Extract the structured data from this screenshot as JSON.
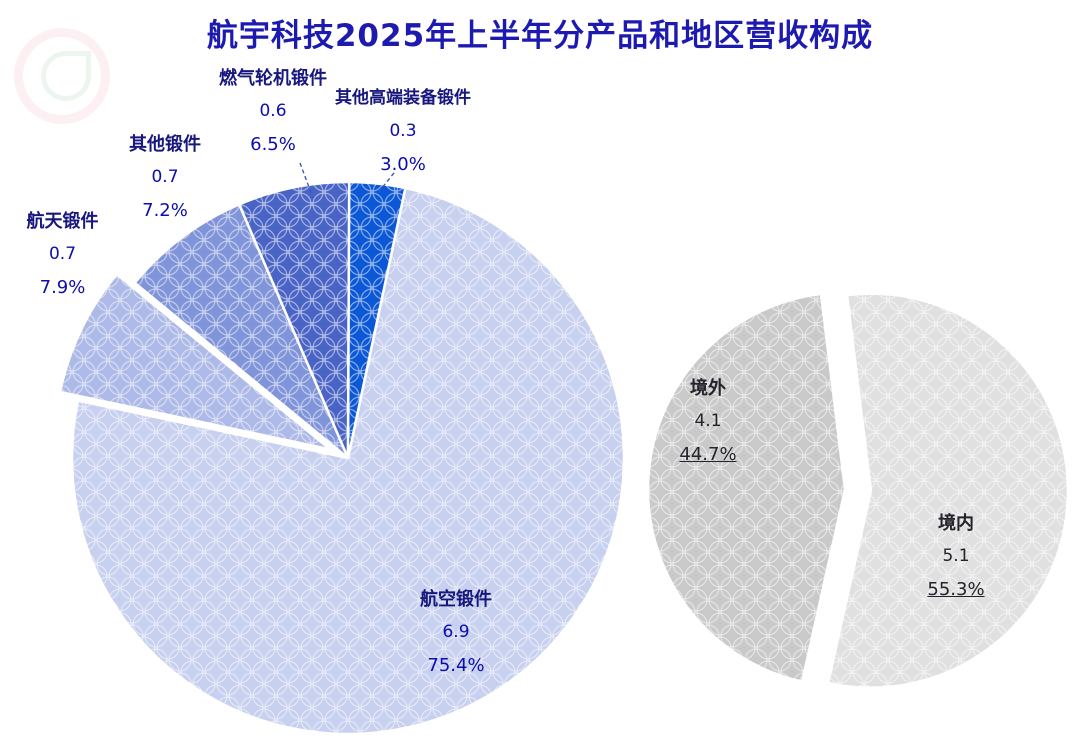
{
  "title": "航宇科技2025年上半年分产品和地区营收构成",
  "chart_data": [
    {
      "type": "pie",
      "name": "revenue-by-product",
      "labels": [
        "航空锻件",
        "航天锻件",
        "其他锻件",
        "燃气轮机锻件",
        "其他高端装备锻件"
      ],
      "values": [
        6.9,
        0.7,
        0.7,
        0.6,
        0.3
      ],
      "percents": [
        "75.4%",
        "7.9%",
        "7.2%",
        "6.5%",
        "3.0%"
      ],
      "colors": [
        "#c7d0ef",
        "#adb9e7",
        "#8094d9",
        "#4a64c6",
        "#0b57d6"
      ],
      "start_angle": 78,
      "direction": "clockwise",
      "explode": [
        0,
        20,
        0,
        0,
        0
      ],
      "legend": "none"
    },
    {
      "type": "pie",
      "name": "revenue-by-region",
      "labels": [
        "境内",
        "境外"
      ],
      "values": [
        5.1,
        4.1
      ],
      "percents": [
        "55.3%",
        "44.7%"
      ],
      "colors": [
        "#e0e0e0",
        "#c9c9c9"
      ],
      "start_angle": 97,
      "direction": "clockwise",
      "explode": [
        13,
        13
      ],
      "legend": "none"
    }
  ]
}
